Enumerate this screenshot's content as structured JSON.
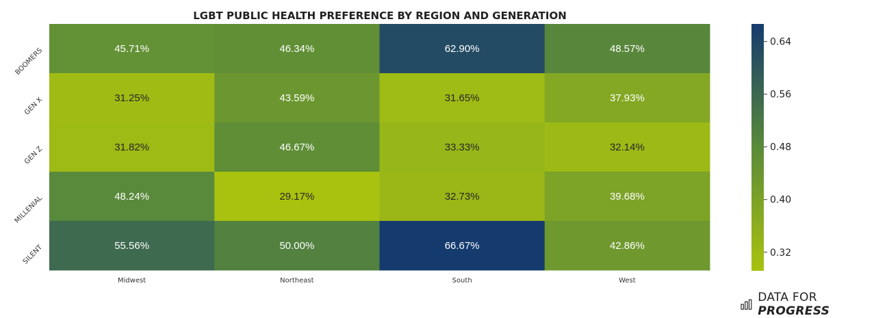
{
  "chart_data": {
    "type": "heatmap",
    "title": "LGBT PUBLIC HEALTH PREFERENCE BY REGION AND GENERATION",
    "columns": [
      "Midwest",
      "Northeast",
      "South",
      "West"
    ],
    "rows": [
      "BOOMERS",
      "GEN X",
      "GEN Z",
      "MILLENIAL",
      "SILENT"
    ],
    "values": [
      [
        0.4571,
        0.4634,
        0.629,
        0.4857
      ],
      [
        0.3125,
        0.4359,
        0.3165,
        0.3793
      ],
      [
        0.3182,
        0.4667,
        0.3333,
        0.3214
      ],
      [
        0.4824,
        0.2917,
        0.3273,
        0.3968
      ],
      [
        0.5556,
        0.5,
        0.6667,
        0.4286
      ]
    ],
    "labels": [
      [
        "45.71%",
        "46.34%",
        "62.90%",
        "48.57%"
      ],
      [
        "31.25%",
        "43.59%",
        "31.65%",
        "37.93%"
      ],
      [
        "31.82%",
        "46.67%",
        "33.33%",
        "32.14%"
      ],
      [
        "48.24%",
        "29.17%",
        "32.73%",
        "39.68%"
      ],
      [
        "55.56%",
        "50.00%",
        "66.67%",
        "42.86%"
      ]
    ],
    "colorbar": {
      "range": [
        0.2917,
        0.6667
      ],
      "ticks": [
        "0.64",
        "0.56",
        "0.48",
        "0.40",
        "0.32"
      ],
      "colors": [
        "#a9c20f",
        "#5a8a3a",
        "#153b6e"
      ]
    }
  },
  "branding": {
    "prefix": "DATA FOR ",
    "emphasis": "PROGRESS"
  }
}
